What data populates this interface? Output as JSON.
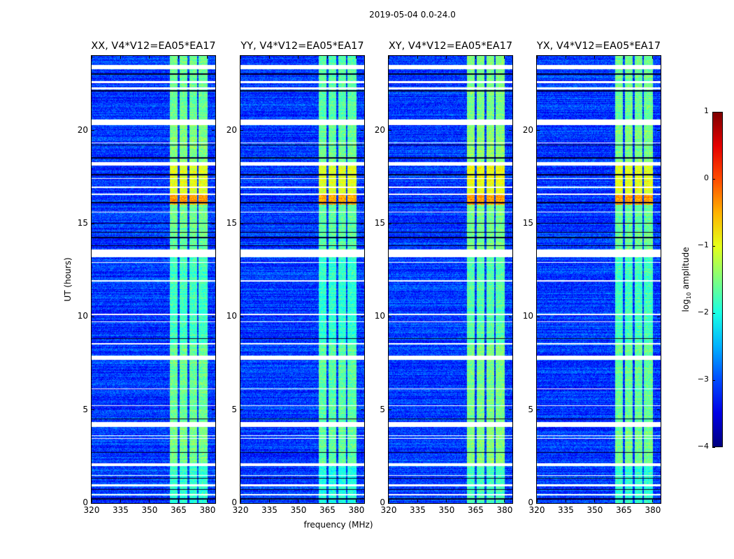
{
  "chart_data": {
    "type": "heatmap",
    "title": "2019-05-04 0.0-24.0",
    "xlabel": "frequency (MHz)",
    "ylabel": "UT (hours)",
    "xlim": [
      320,
      384
    ],
    "ylim": [
      0,
      24
    ],
    "xticks": [
      320,
      335,
      350,
      365,
      380
    ],
    "xtick_labels": [
      "320",
      "335",
      "350",
      "365",
      "380"
    ],
    "yticks": [
      0,
      5,
      10,
      15,
      20
    ],
    "ytick_labels": [
      "0",
      "5",
      "10",
      "15",
      "20"
    ],
    "panels": [
      {
        "title": "XX, V4*V12=EA05*EA17",
        "band_scale": 1.0
      },
      {
        "title": "YY, V4*V12=EA05*EA17",
        "band_scale": 1.05
      },
      {
        "title": "XY, V4*V12=EA05*EA17",
        "band_scale": 0.95
      },
      {
        "title": "YX, V4*V12=EA05*EA17",
        "band_scale": 1.0
      }
    ],
    "colorbar": {
      "label_prefix": "log",
      "label_sub": "10",
      "label_suffix": " amplitude",
      "range": [
        -4,
        1
      ],
      "ticks": [
        1,
        0,
        -1,
        -2,
        -3,
        -4
      ],
      "tick_labels": [
        "1",
        "0",
        "−1",
        "−2",
        "−3",
        "−4"
      ],
      "colormap": "jet"
    },
    "background_level": -3.1,
    "rfi_bands_mhz": [
      [
        360.5,
        364.5
      ],
      [
        365.5,
        369.5
      ],
      [
        370.5,
        374.5
      ],
      [
        375.5,
        380.0
      ]
    ],
    "band_levels": [
      {
        "t": [
          0,
          2.1
        ],
        "level": -1.9
      },
      {
        "t": [
          2.1,
          4.4
        ],
        "level": -1.55
      },
      {
        "t": [
          4.4,
          8.6
        ],
        "level": -1.6
      },
      {
        "t": [
          8.6,
          13.6
        ],
        "level": -1.8
      },
      {
        "t": [
          13.6,
          16.0
        ],
        "level": -1.6
      },
      {
        "t": [
          16.0,
          16.6
        ],
        "level": -0.4
      },
      {
        "t": [
          16.6,
          18.2
        ],
        "level": -1.0
      },
      {
        "t": [
          18.2,
          20.3
        ],
        "level": -1.5
      },
      {
        "t": [
          20.3,
          24
        ],
        "level": -1.6
      }
    ],
    "flagged_rows_hours": [
      [
        23.3,
        23.5
      ],
      [
        22.55,
        22.65
      ],
      [
        22.2,
        22.3
      ],
      [
        20.3,
        20.6
      ],
      [
        19.3,
        19.35
      ],
      [
        18.1,
        18.3
      ],
      [
        17.4,
        17.45
      ],
      [
        16.9,
        17.0
      ],
      [
        16.55,
        16.62
      ],
      [
        15.6,
        15.65
      ],
      [
        13.2,
        13.6
      ],
      [
        12.9,
        12.95
      ],
      [
        11.9,
        11.95
      ],
      [
        10.1,
        10.15
      ],
      [
        9.7,
        9.75
      ],
      [
        8.5,
        8.6
      ],
      [
        7.7,
        7.9
      ],
      [
        6.1,
        6.15
      ],
      [
        5.2,
        5.25
      ],
      [
        4.1,
        4.35
      ],
      [
        3.6,
        3.65
      ],
      [
        3.45,
        3.5
      ],
      [
        2.0,
        2.15
      ],
      [
        1.45,
        1.5
      ],
      [
        0.9,
        1.0
      ],
      [
        0.4,
        0.5
      ]
    ],
    "dark_rows_hours": [
      [
        23.0,
        23.05
      ],
      [
        22.1,
        22.15
      ],
      [
        19.2,
        19.25
      ],
      [
        18.5,
        18.55
      ],
      [
        17.6,
        17.65
      ],
      [
        16.1,
        16.15
      ],
      [
        15.0,
        15.05
      ],
      [
        14.5,
        14.55
      ],
      [
        14.2,
        14.3
      ],
      [
        13.8,
        13.85
      ],
      [
        8.8,
        8.85
      ],
      [
        4.5,
        4.55
      ],
      [
        2.7,
        2.75
      ],
      [
        1.3,
        1.35
      ],
      [
        0.7,
        0.75
      ],
      [
        0.2,
        0.25
      ]
    ]
  }
}
